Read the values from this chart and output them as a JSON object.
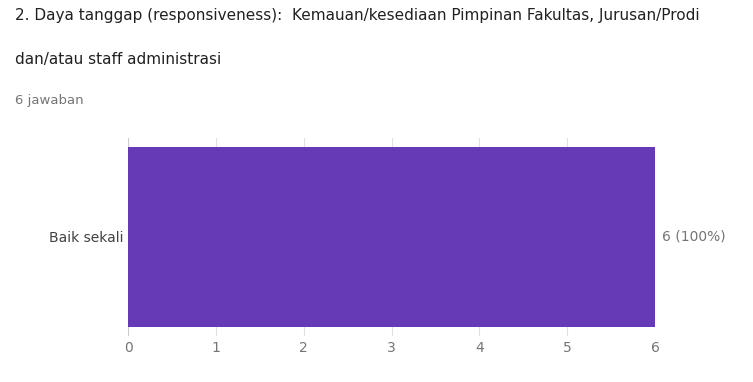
{
  "title_line1": "2. Daya tanggap (responsiveness):  Kemauan/kesediaan Pimpinan Fakultas, Jurusan/Prodi",
  "title_line2": "dan/atau staff administrasi",
  "subtitle": "6 jawaban",
  "categories": [
    "Baik sekali"
  ],
  "values": [
    6
  ],
  "bar_color": "#6639b7",
  "label": "6 (100%)",
  "xlim": [
    0,
    6
  ],
  "xticks": [
    0,
    1,
    2,
    3,
    4,
    5,
    6
  ],
  "background_color": "#ffffff",
  "grid_color": "#e0e0e0",
  "title_color": "#212121",
  "subtitle_color": "#757575",
  "label_color": "#757575",
  "ytick_color": "#424242",
  "xtick_color": "#757575",
  "title_fontsize": 11.0,
  "subtitle_fontsize": 9.5,
  "label_fontsize": 10,
  "ytick_fontsize": 10,
  "xtick_fontsize": 10,
  "bar_height": 0.6
}
